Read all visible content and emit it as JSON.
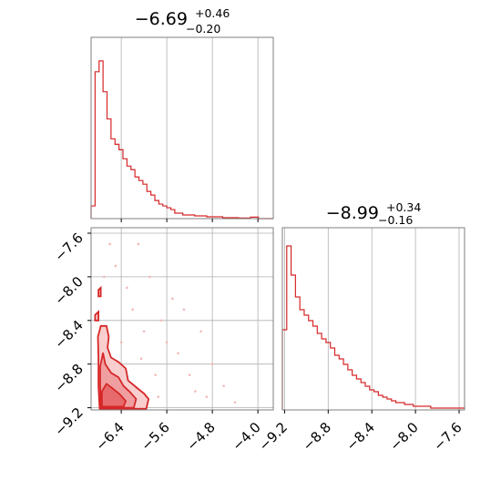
{
  "chart_data": [
    {
      "type": "histogram",
      "panel": "top-left",
      "title": {
        "median": "−6.69",
        "plus": "+0.46",
        "minus": "−0.20"
      },
      "x_ticks": [
        -6.4,
        -5.6,
        -4.8,
        -4.0
      ],
      "x_tick_labels": [
        "−6.4",
        "−5.6",
        "−4.8",
        "−4.0"
      ],
      "xlim": [
        -6.93,
        -3.73
      ],
      "ylim": [
        0,
        1
      ],
      "grid": true,
      "color": "#d62728",
      "bin_edges": [
        -6.93,
        -6.86,
        -6.79,
        -6.72,
        -6.65,
        -6.58,
        -6.51,
        -6.44,
        -6.37,
        -6.3,
        -6.23,
        -6.16,
        -6.09,
        -6.02,
        -5.95,
        -5.88,
        -5.81,
        -5.74,
        -5.67,
        -5.6,
        -5.53,
        -5.46,
        -5.32,
        -5.11,
        -4.9,
        -4.62,
        -4.34,
        -4.13,
        -3.99,
        -3.73
      ],
      "values": [
        0.07,
        0.81,
        0.87,
        0.7,
        0.55,
        0.44,
        0.41,
        0.38,
        0.33,
        0.29,
        0.27,
        0.23,
        0.21,
        0.19,
        0.15,
        0.13,
        0.1,
        0.08,
        0.07,
        0.06,
        0.05,
        0.03,
        0.02,
        0.015,
        0.01,
        0.005,
        0.003,
        0.008,
        0.0
      ]
    },
    {
      "type": "histogram",
      "panel": "bottom-right",
      "title": {
        "median": "−8.99",
        "plus": "+0.34",
        "minus": "−0.16"
      },
      "x_ticks": [
        -9.2,
        -8.8,
        -8.4,
        -8.0,
        -7.6
      ],
      "x_tick_labels": [
        "−9.2",
        "−8.8",
        "−8.4",
        "−8.0",
        "−7.6"
      ],
      "xlim": [
        -9.22,
        -7.55
      ],
      "ylim": [
        0,
        1
      ],
      "grid": true,
      "color": "#d62728",
      "bin_edges": [
        -9.22,
        -9.18,
        -9.14,
        -9.1,
        -9.06,
        -9.02,
        -8.98,
        -8.94,
        -8.9,
        -8.86,
        -8.82,
        -8.78,
        -8.74,
        -8.7,
        -8.66,
        -8.62,
        -8.58,
        -8.54,
        -8.5,
        -8.46,
        -8.42,
        -8.38,
        -8.34,
        -8.3,
        -8.26,
        -8.22,
        -8.18,
        -8.14,
        -8.1,
        -8.06,
        -8.02,
        -7.98,
        -7.94,
        -7.9,
        -7.86,
        -7.82,
        -7.78,
        -7.74,
        -7.7,
        -7.66,
        -7.62,
        -7.58,
        -7.55
      ],
      "values": [
        0.44,
        0.9,
        0.74,
        0.62,
        0.55,
        0.52,
        0.49,
        0.46,
        0.42,
        0.39,
        0.37,
        0.34,
        0.3,
        0.28,
        0.25,
        0.22,
        0.19,
        0.17,
        0.15,
        0.13,
        0.11,
        0.1,
        0.08,
        0.07,
        0.06,
        0.05,
        0.04,
        0.04,
        0.03,
        0.03,
        0.02,
        0.02,
        0.02,
        0.02,
        0.01,
        0.01,
        0.01,
        0.01,
        0.01,
        0.01,
        0.01,
        0.01
      ]
    },
    {
      "type": "contour",
      "panel": "bottom-left",
      "x_ticks": [
        -6.4,
        -5.6,
        -4.8,
        -4.0
      ],
      "x_tick_labels": [
        "−6.4",
        "−5.6",
        "−4.8",
        "−4.0"
      ],
      "y_ticks": [
        -9.2,
        -8.8,
        -8.4,
        -8.0,
        -7.6
      ],
      "y_tick_labels": [
        "−9.2",
        "−8.8",
        "−8.4",
        "−8.0",
        "−7.6"
      ],
      "xlim": [
        -6.93,
        -3.73
      ],
      "ylim": [
        -9.22,
        -7.55
      ],
      "grid": true,
      "line_color": "#d62728",
      "fill_colors": [
        "#f7c9c9",
        "#ee9a9b",
        "#e56567"
      ],
      "contour_levels": [
        {
          "level": 1,
          "points": [
            [
              -6.78,
              -9.21
            ],
            [
              -6.8,
              -9.0
            ],
            [
              -6.8,
              -8.75
            ],
            [
              -6.81,
              -8.55
            ],
            [
              -6.76,
              -8.45
            ],
            [
              -6.66,
              -8.45
            ],
            [
              -6.62,
              -8.55
            ],
            [
              -6.64,
              -8.65
            ],
            [
              -6.58,
              -8.74
            ],
            [
              -6.45,
              -8.78
            ],
            [
              -6.32,
              -8.84
            ],
            [
              -6.28,
              -8.95
            ],
            [
              -6.12,
              -9.02
            ],
            [
              -6.0,
              -9.07
            ],
            [
              -5.92,
              -9.12
            ],
            [
              -5.96,
              -9.21
            ]
          ]
        },
        {
          "level": 2,
          "points": [
            [
              -6.76,
              -9.2
            ],
            [
              -6.77,
              -9.0
            ],
            [
              -6.77,
              -8.82
            ],
            [
              -6.72,
              -8.7
            ],
            [
              -6.68,
              -8.8
            ],
            [
              -6.58,
              -8.88
            ],
            [
              -6.45,
              -8.92
            ],
            [
              -6.36,
              -9.0
            ],
            [
              -6.24,
              -9.06
            ],
            [
              -6.14,
              -9.12
            ],
            [
              -6.18,
              -9.2
            ]
          ]
        },
        {
          "level": 3,
          "points": [
            [
              -6.74,
              -9.19
            ],
            [
              -6.74,
              -9.05
            ],
            [
              -6.66,
              -8.98
            ],
            [
              -6.56,
              -9.02
            ],
            [
              -6.42,
              -9.08
            ],
            [
              -6.32,
              -9.14
            ],
            [
              -6.36,
              -9.19
            ]
          ]
        }
      ],
      "islands": [
        [
          [
            -6.8,
            -8.12
          ],
          [
            -6.76,
            -8.1
          ],
          [
            -6.76,
            -8.18
          ],
          [
            -6.8,
            -8.18
          ]
        ],
        [
          [
            -6.86,
            -8.35
          ],
          [
            -6.8,
            -8.32
          ],
          [
            -6.8,
            -8.4
          ],
          [
            -6.86,
            -8.4
          ]
        ]
      ],
      "scatter": [
        [
          -6.2,
          -8.3
        ],
        [
          -6.0,
          -8.5
        ],
        [
          -5.7,
          -8.4
        ],
        [
          -5.4,
          -8.7
        ],
        [
          -5.0,
          -8.5
        ],
        [
          -4.6,
          -9.0
        ],
        [
          -5.5,
          -8.2
        ],
        [
          -6.5,
          -7.9
        ],
        [
          -6.3,
          -8.1
        ],
        [
          -5.9,
          -8.0
        ],
        [
          -5.2,
          -8.9
        ],
        [
          -4.9,
          -9.1
        ],
        [
          -6.1,
          -7.7
        ],
        [
          -6.6,
          -7.7
        ],
        [
          -5.8,
          -8.9
        ],
        [
          -5.6,
          -8.6
        ],
        [
          -5.3,
          -8.3
        ],
        [
          -4.8,
          -8.8
        ],
        [
          -6.4,
          -8.6
        ],
        [
          -6.7,
          -8.0
        ],
        [
          -4.4,
          -9.15
        ],
        [
          -5.1,
          -9.05
        ],
        [
          -6.05,
          -8.75
        ],
        [
          -5.75,
          -9.1
        ]
      ]
    }
  ]
}
